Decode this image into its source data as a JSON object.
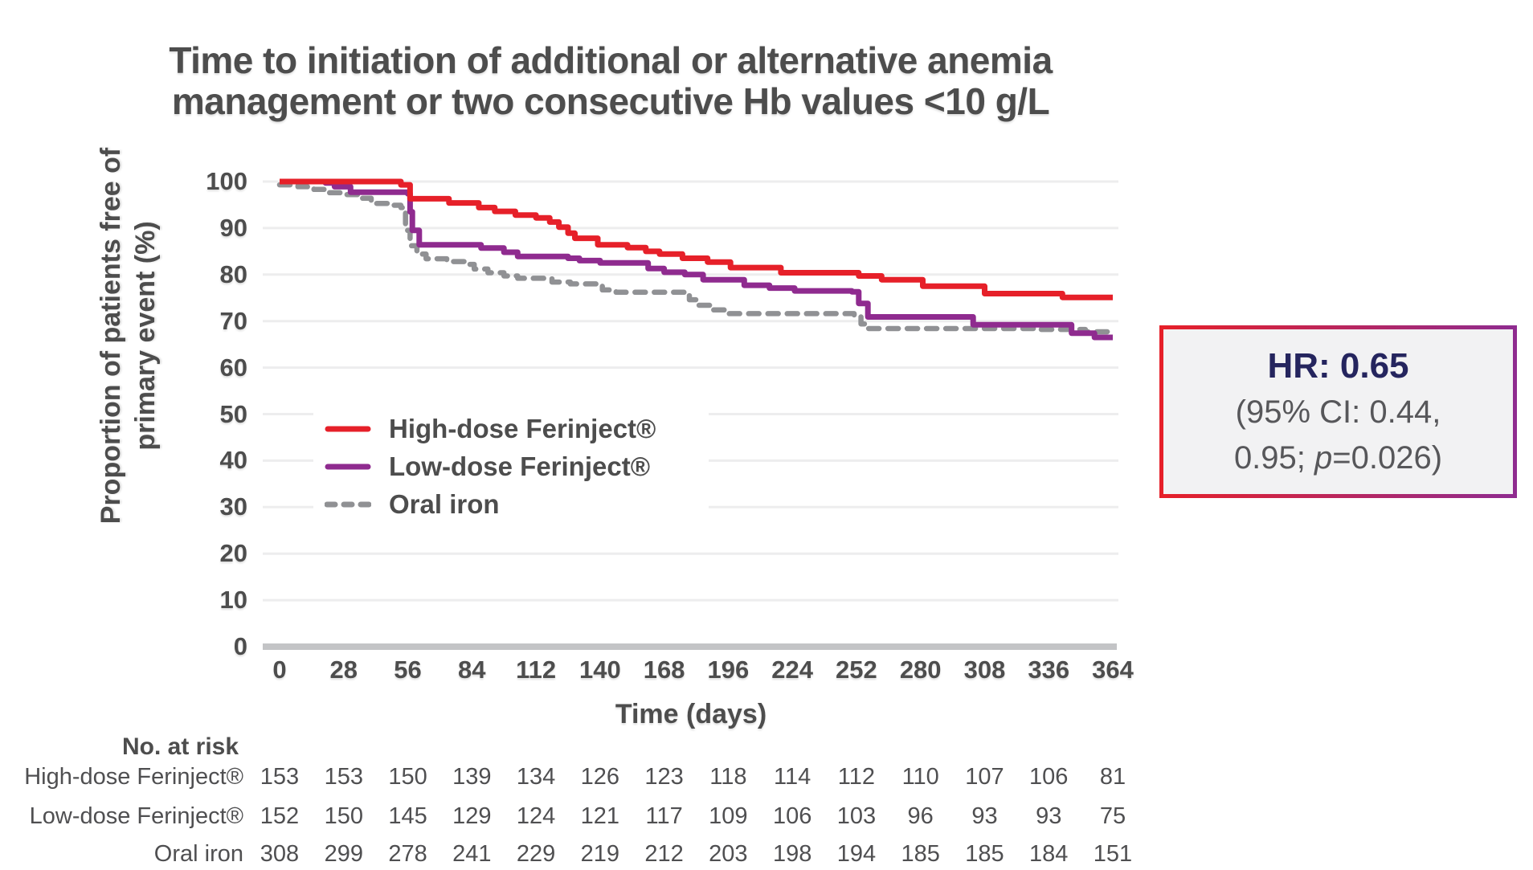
{
  "title": {
    "line1": "Time to initiation of additional or alternative anemia",
    "line2": "management or two consecutive Hb values <10 g/L"
  },
  "y_axis": {
    "label_line1": "Proportion of patients free of",
    "label_line2": "primary event (%)"
  },
  "x_axis": {
    "label": "Time (days)"
  },
  "hr_box": {
    "line1": "HR: 0.65",
    "line2": "(95% CI: 0.44,",
    "line3_pre": "0.95; ",
    "line3_p": "p",
    "line3_post": "=0.026)",
    "background": "#f2f2f3",
    "border_gradient_left": "#e62029",
    "border_gradient_right": "#8f2b8f",
    "hr_text_color": "#25255e",
    "ci_text_color": "#57575a"
  },
  "risk_table": {
    "header": "No. at risk",
    "rows": [
      {
        "label": "High-dose Ferinject®",
        "values": [
          153,
          153,
          150,
          139,
          134,
          126,
          123,
          118,
          114,
          112,
          110,
          107,
          106,
          81
        ]
      },
      {
        "label": "Low-dose Ferinject®",
        "values": [
          152,
          150,
          145,
          129,
          124,
          121,
          117,
          109,
          106,
          103,
          96,
          93,
          93,
          75
        ]
      },
      {
        "label": "Oral iron",
        "values": [
          308,
          299,
          278,
          241,
          229,
          219,
          212,
          203,
          198,
          194,
          185,
          185,
          184,
          151
        ]
      }
    ]
  },
  "chart_data": {
    "type": "line",
    "subtype": "kaplan-meier-step",
    "title": "Time to initiation of additional or alternative anemia management or two consecutive Hb values <10 g/L",
    "xlabel": "Time (days)",
    "ylabel": "Proportion of patients free of primary event (%)",
    "xlim": [
      0,
      364
    ],
    "ylim": [
      0,
      100
    ],
    "x_ticks": [
      0,
      28,
      56,
      84,
      112,
      140,
      168,
      196,
      224,
      252,
      280,
      308,
      336,
      364
    ],
    "y_ticks": [
      0,
      10,
      20,
      30,
      40,
      50,
      60,
      70,
      80,
      90,
      100
    ],
    "grid": "horizontal",
    "grid_color": "#ededee",
    "axis_bar_color": "#c3c4c6",
    "legend_position": "inside-left-middle",
    "series": [
      {
        "name": "Oral iron",
        "color": "#909194",
        "dash": "dashed",
        "points": [
          [
            0,
            99.3
          ],
          [
            8,
            98.9
          ],
          [
            15,
            98.3
          ],
          [
            21,
            97.6
          ],
          [
            28,
            97.2
          ],
          [
            34,
            96.4
          ],
          [
            40,
            95.3
          ],
          [
            47,
            94.9
          ],
          [
            53,
            94.4
          ],
          [
            55,
            89.5
          ],
          [
            57,
            86.2
          ],
          [
            60,
            84.4
          ],
          [
            64,
            83.4
          ],
          [
            73,
            82.8
          ],
          [
            81,
            82.2
          ],
          [
            85,
            81.2
          ],
          [
            91,
            80.4
          ],
          [
            98,
            79.7
          ],
          [
            104,
            79.2
          ],
          [
            119,
            78.4
          ],
          [
            127,
            78.0
          ],
          [
            141,
            76.7
          ],
          [
            147,
            76.2
          ],
          [
            177,
            75.9
          ],
          [
            179,
            74.6
          ],
          [
            183,
            73.4
          ],
          [
            189,
            72.4
          ],
          [
            195,
            71.6
          ],
          [
            251,
            71.3
          ],
          [
            254,
            69.4
          ],
          [
            257,
            68.4
          ],
          [
            330,
            68.2
          ],
          [
            352,
            67.7
          ],
          [
            364,
            67.7
          ]
        ]
      },
      {
        "name": "Low-dose Ferinject®",
        "color": "#8f2b8f",
        "dash": "solid",
        "points": [
          [
            0,
            100
          ],
          [
            20,
            99.7
          ],
          [
            24,
            98.9
          ],
          [
            31,
            97.7
          ],
          [
            56,
            97.4
          ],
          [
            57,
            93.5
          ],
          [
            58,
            89.5
          ],
          [
            61,
            86.4
          ],
          [
            88,
            85.7
          ],
          [
            98,
            84.8
          ],
          [
            104,
            83.9
          ],
          [
            126,
            83.5
          ],
          [
            131,
            83.0
          ],
          [
            140,
            82.5
          ],
          [
            161,
            81.3
          ],
          [
            168,
            80.5
          ],
          [
            177,
            80.0
          ],
          [
            185,
            78.9
          ],
          [
            203,
            77.7
          ],
          [
            214,
            77.1
          ],
          [
            225,
            76.5
          ],
          [
            250,
            76.3
          ],
          [
            253,
            73.8
          ],
          [
            257,
            70.9
          ],
          [
            303,
            69.2
          ],
          [
            346,
            67.4
          ],
          [
            356,
            66.5
          ],
          [
            364,
            66.5
          ]
        ]
      },
      {
        "name": "High-dose Ferinject®",
        "color": "#e62029",
        "dash": "solid",
        "points": [
          [
            0,
            100
          ],
          [
            53,
            99.3
          ],
          [
            57,
            96.3
          ],
          [
            74,
            95.4
          ],
          [
            87,
            94.4
          ],
          [
            94,
            93.6
          ],
          [
            103,
            92.8
          ],
          [
            112,
            92.2
          ],
          [
            118,
            91.3
          ],
          [
            122,
            90.2
          ],
          [
            126,
            88.9
          ],
          [
            129,
            87.8
          ],
          [
            139,
            86.4
          ],
          [
            152,
            85.8
          ],
          [
            160,
            85.0
          ],
          [
            166,
            84.4
          ],
          [
            176,
            83.5
          ],
          [
            187,
            82.7
          ],
          [
            197,
            81.5
          ],
          [
            219,
            80.4
          ],
          [
            253,
            79.7
          ],
          [
            263,
            78.9
          ],
          [
            281,
            77.5
          ],
          [
            308,
            75.9
          ],
          [
            342,
            75.1
          ],
          [
            364,
            75.1
          ]
        ]
      }
    ],
    "legend_order": [
      "High-dose Ferinject®",
      "Low-dose Ferinject®",
      "Oral iron"
    ]
  }
}
